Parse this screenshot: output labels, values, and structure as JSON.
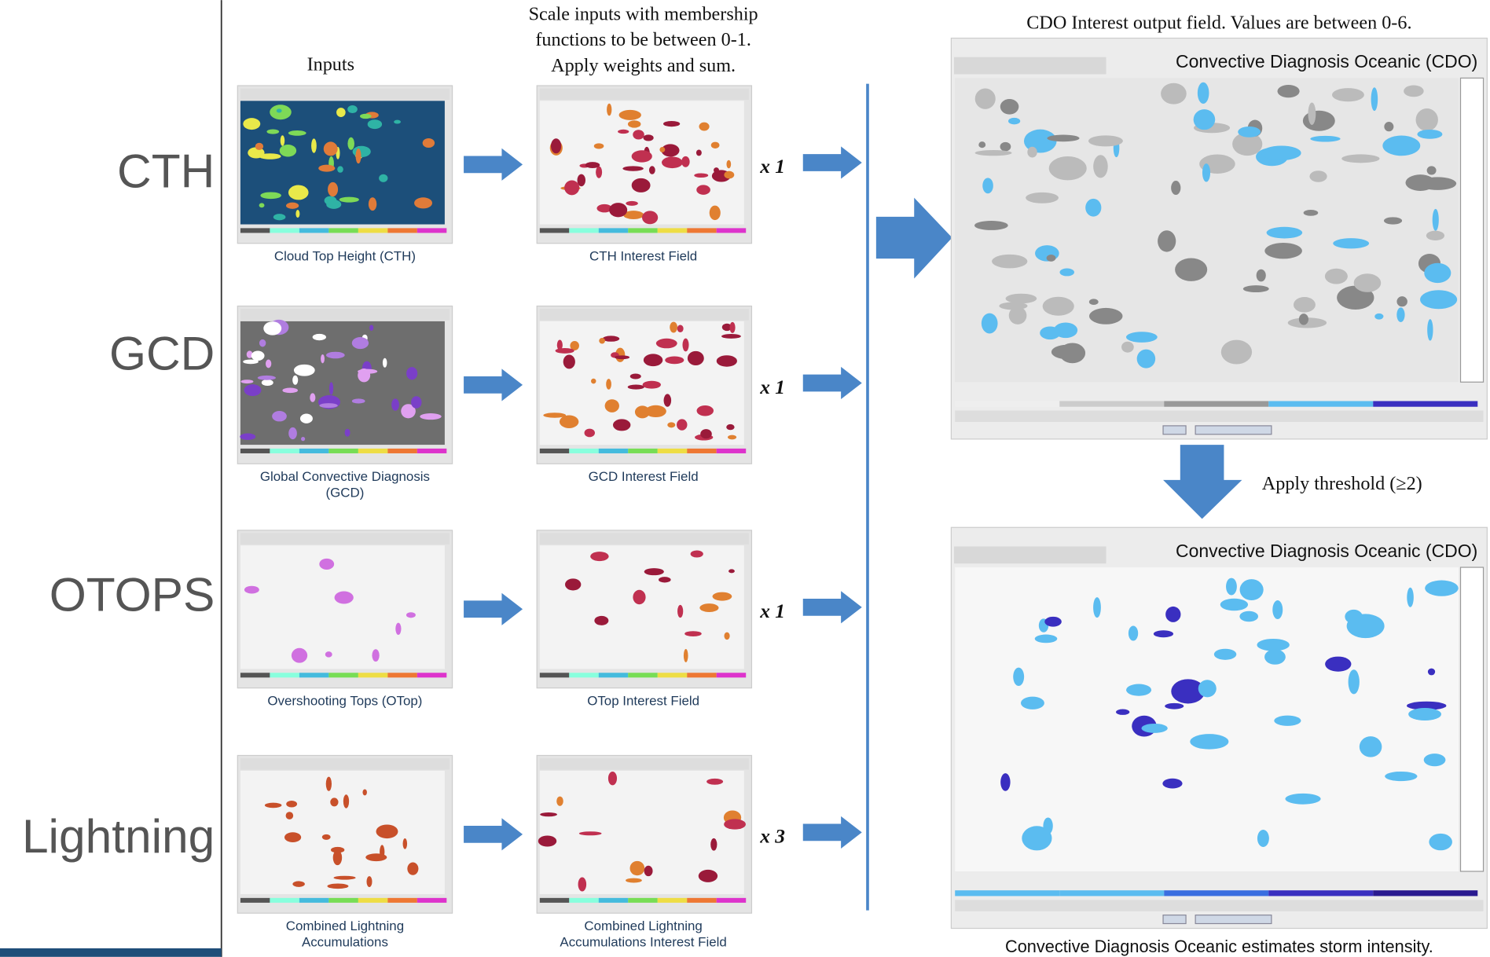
{
  "headers": {
    "inputs": "Inputs",
    "scale": [
      "Scale inputs with membership",
      "functions to be between 0-1.",
      "Apply weights and sum."
    ],
    "output": "CDO Interest output field.  Values are between 0-6."
  },
  "rows": [
    {
      "label": "CTH",
      "input_caption": [
        "Cloud Top Height (CTH)"
      ],
      "interest_caption": [
        "CTH Interest Field"
      ],
      "weight": "x 1"
    },
    {
      "label": "GCD",
      "input_caption": [
        "Global Convective Diagnosis",
        "(GCD)"
      ],
      "interest_caption": [
        "GCD Interest Field"
      ],
      "weight": "x 1"
    },
    {
      "label": "OTOPS",
      "input_caption": [
        "Overshooting Tops (OTop)"
      ],
      "interest_caption": [
        "OTop Interest Field"
      ],
      "weight": "x 1"
    },
    {
      "label": "Lightning",
      "input_caption": [
        "Combined Lightning",
        "Accumulations"
      ],
      "interest_caption": [
        "Combined Lightning",
        "Accumulations Interest Field"
      ],
      "weight": "x 3"
    }
  ],
  "threshold": "Apply threshold (≥2)",
  "panels": [
    {
      "title": "Convective Diagnosis Oceanic (CDO)"
    },
    {
      "title": "Convective Diagnosis Oceanic (CDO)"
    }
  ],
  "caption": "Convective Diagnosis Oceanic estimates storm intensity."
}
